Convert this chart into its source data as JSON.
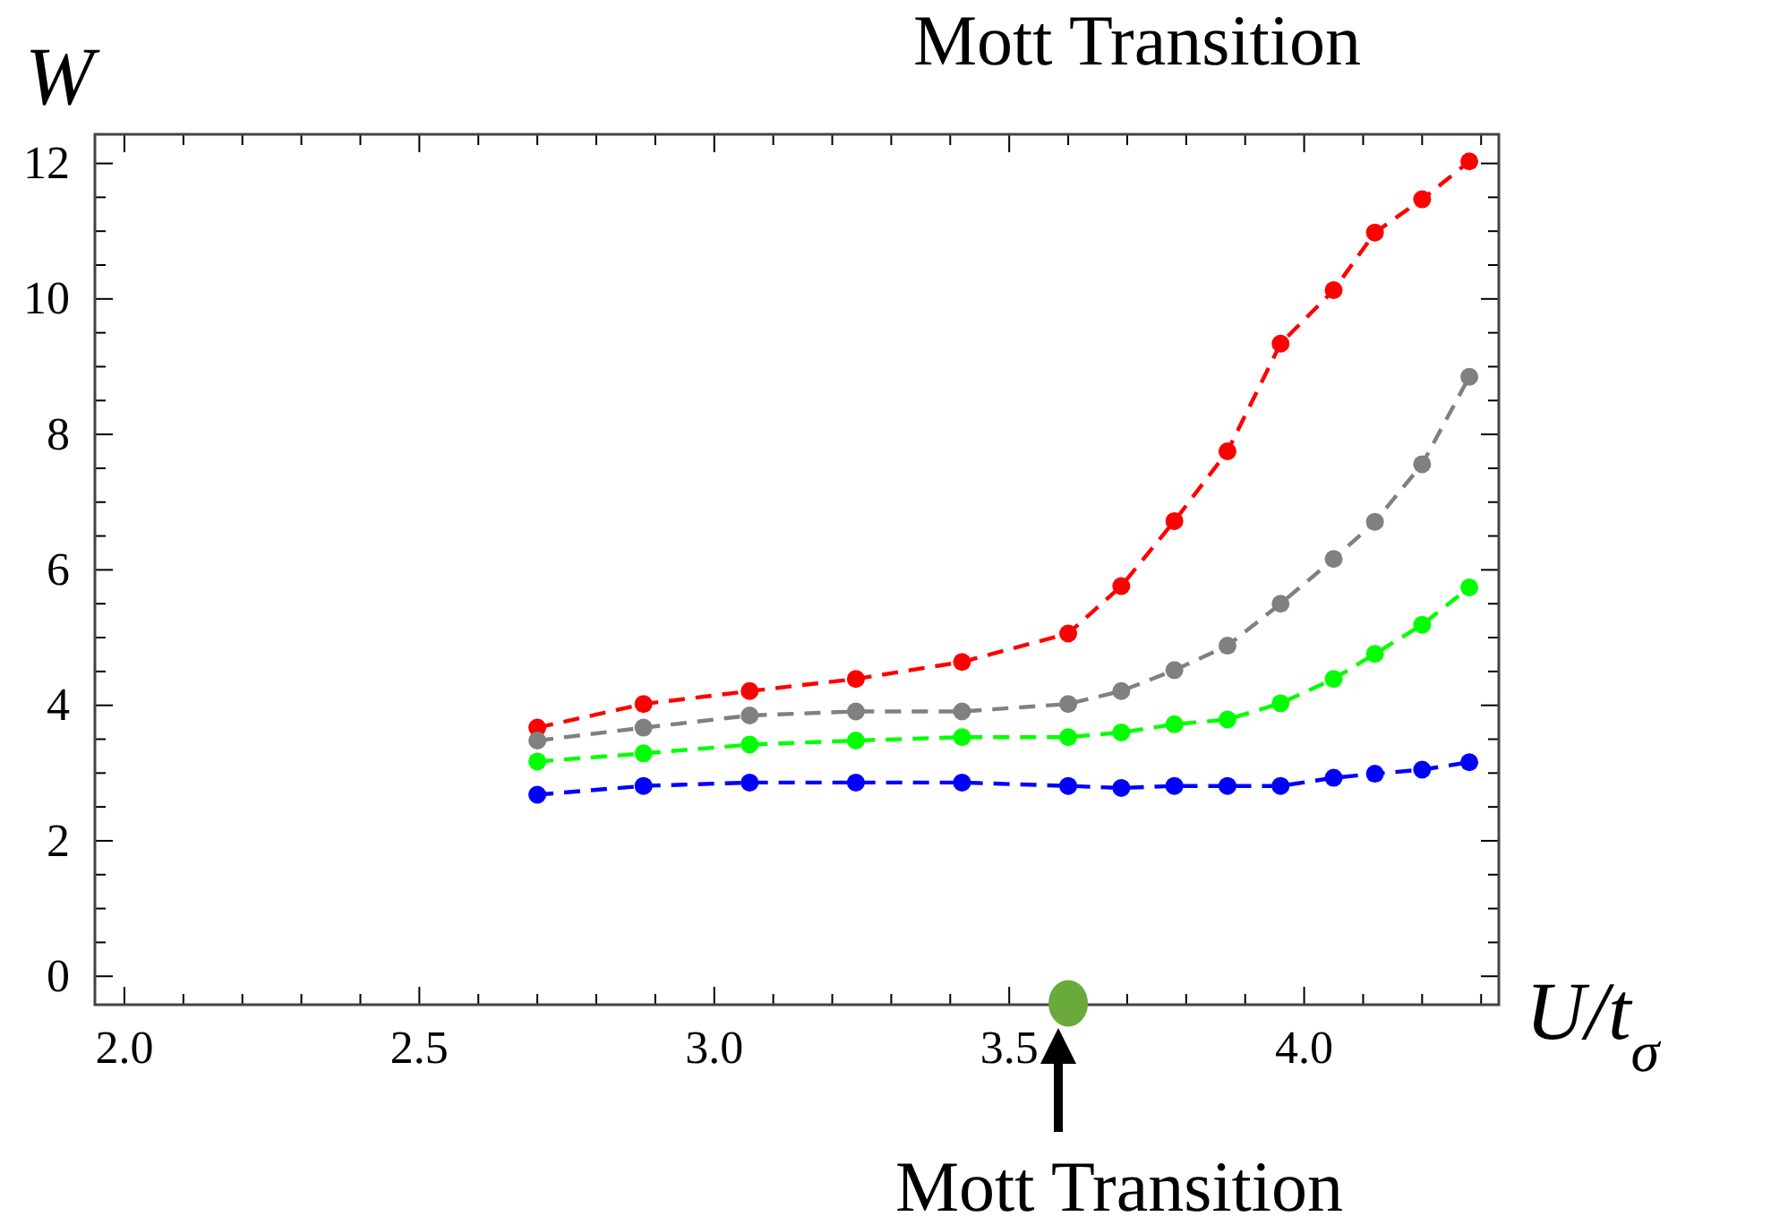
{
  "chart_data": {
    "type": "line",
    "title": "Mott Transition",
    "ylabel": "W",
    "xlabel": "U/t$_{σ}$",
    "x": [
      2.7,
      2.88,
      3.06,
      3.24,
      3.42,
      3.6,
      3.69,
      3.78,
      3.87,
      3.96,
      4.05,
      4.12,
      4.2,
      4.28
    ],
    "series": [
      {
        "color": "#ff0000",
        "values": [
          3.67,
          4.02,
          4.21,
          4.39,
          4.64,
          5.06,
          5.76,
          6.72,
          7.75,
          9.34,
          10.13,
          10.98,
          11.47,
          12.03
        ]
      },
      {
        "color": "#808080",
        "values": [
          3.48,
          3.67,
          3.85,
          3.91,
          3.91,
          4.02,
          4.21,
          4.52,
          4.88,
          5.5,
          6.16,
          6.71,
          7.56,
          8.85
        ]
      },
      {
        "color": "#00ff00",
        "values": [
          3.17,
          3.29,
          3.42,
          3.48,
          3.53,
          3.53,
          3.6,
          3.72,
          3.79,
          4.03,
          4.39,
          4.76,
          5.19,
          5.74
        ]
      },
      {
        "color": "#0000ff",
        "values": [
          2.68,
          2.81,
          2.86,
          2.86,
          2.86,
          2.81,
          2.78,
          2.81,
          2.81,
          2.81,
          2.93,
          2.99,
          3.05,
          3.16
        ]
      },
      {
        "type": "scatter",
        "color": "#6aaa3a",
        "x": [
          3.6
        ],
        "values": [
          -0.4
        ]
      }
    ],
    "marker": "circle",
    "line_style": "dashed",
    "grid": false,
    "annotations": [
      "Mott Transition"
    ],
    "xlim": [
      1.95,
      4.33
    ],
    "ylim": [
      -0.42,
      12.43
    ],
    "xticks": [
      {
        "value": 2,
        "label": "2.0"
      },
      {
        "value": 2.1,
        "label": null
      },
      {
        "value": 2.2,
        "label": null
      },
      {
        "value": 2.3,
        "label": null
      },
      {
        "value": 2.4,
        "label": null
      },
      {
        "value": 2.5,
        "label": "2.5"
      },
      {
        "value": 2.6,
        "label": null
      },
      {
        "value": 2.7,
        "label": null
      },
      {
        "value": 2.8,
        "label": null
      },
      {
        "value": 2.9,
        "label": null
      },
      {
        "value": 3,
        "label": "3.0"
      },
      {
        "value": 3.1,
        "label": null
      },
      {
        "value": 3.2,
        "label": null
      },
      {
        "value": 3.3,
        "label": null
      },
      {
        "value": 3.4,
        "label": null
      },
      {
        "value": 3.5,
        "label": "3.5"
      },
      {
        "value": 3.6,
        "label": null
      },
      {
        "value": 3.7,
        "label": null
      },
      {
        "value": 3.8,
        "label": null
      },
      {
        "value": 3.9,
        "label": null
      },
      {
        "value": 4,
        "label": "4.0"
      },
      {
        "value": 4.1,
        "label": null
      },
      {
        "value": 4.2,
        "label": null
      },
      {
        "value": 4.3,
        "label": null
      }
    ],
    "yticks": [
      0,
      {
        "value": 0.5,
        "label": null
      },
      {
        "value": 1,
        "label": null
      },
      {
        "value": 1.5,
        "label": null
      },
      2,
      {
        "value": 2.5,
        "label": null
      },
      {
        "value": 3,
        "label": null
      },
      {
        "value": 3.5,
        "label": null
      },
      4,
      {
        "value": 4.5,
        "label": null
      },
      {
        "value": 5,
        "label": null
      },
      {
        "value": 5.5,
        "label": null
      },
      6,
      {
        "value": 6.5,
        "label": null
      },
      {
        "value": 7,
        "label": null
      },
      {
        "value": 7.5,
        "label": null
      },
      8,
      {
        "value": 8.5,
        "label": null
      },
      {
        "value": 9,
        "label": null
      },
      {
        "value": 9.5,
        "label": null
      },
      10,
      {
        "value": 10.5,
        "label": null
      },
      {
        "value": 11,
        "label": null
      },
      {
        "value": 11.5,
        "label": null
      },
      12
    ]
  }
}
